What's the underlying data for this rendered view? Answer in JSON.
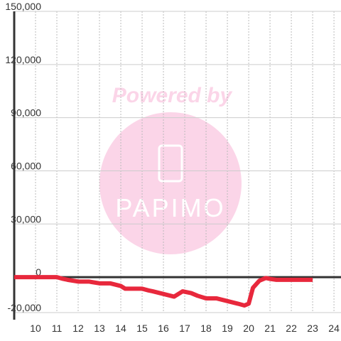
{
  "chart_data": {
    "type": "line",
    "watermark": {
      "top": "Powered by",
      "bottom": "PAPIMO"
    },
    "x": [
      9,
      11,
      11.3,
      11.5,
      12,
      12.5,
      13,
      13.5,
      14,
      14.2,
      14.5,
      15,
      15.3,
      15.5,
      16,
      16.5,
      16.9,
      17.3,
      17.6,
      18,
      18.5,
      19,
      19.5,
      19.8,
      20,
      20.2,
      20.5,
      20.8,
      21,
      21.3,
      22,
      23
    ],
    "series": [
      {
        "color": "#e8283c",
        "values": [
          0,
          0,
          -1000,
          -1500,
          -2500,
          -2500,
          -3500,
          -3500,
          -5000,
          -6500,
          -6500,
          -6500,
          -7500,
          -8000,
          -9500,
          -11000,
          -8000,
          -9000,
          -10500,
          -12000,
          -12000,
          -13500,
          -15000,
          -16000,
          -15000,
          -6000,
          -2000,
          -500,
          -1000,
          -1500,
          -1500,
          -1500
        ]
      }
    ],
    "xlim": [
      9,
      24.33
    ],
    "ylim": [
      -20000,
      150000
    ],
    "xticks": [
      10,
      11,
      12,
      13,
      14,
      15,
      16,
      17,
      18,
      19,
      20,
      21,
      22,
      23,
      24
    ],
    "yticks": [
      {
        "value": -20000,
        "label": "-20,000"
      },
      0,
      {
        "value": 30000,
        "label": "30,000"
      },
      {
        "value": 60000,
        "label": "60,000"
      },
      {
        "value": 90000,
        "label": "90,000"
      },
      {
        "value": 120000,
        "label": "120,000"
      },
      {
        "value": 150000,
        "label": "150,000"
      }
    ],
    "grid": true
  }
}
